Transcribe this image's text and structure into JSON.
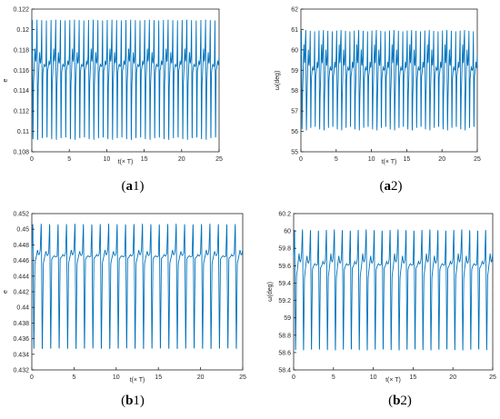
{
  "colors": {
    "line": "#0072BD",
    "axis": "#262626",
    "tick_text": "#262626"
  },
  "panels": [
    {
      "id": "a1",
      "caption_letter": "a",
      "caption_index": "1"
    },
    {
      "id": "a2",
      "caption_letter": "a",
      "caption_index": "2"
    },
    {
      "id": "b1",
      "caption_letter": "b",
      "caption_index": "1"
    },
    {
      "id": "b2",
      "caption_letter": "b",
      "caption_index": "2"
    }
  ],
  "chart_data": [
    {
      "type": "line",
      "panel": "a1",
      "xlabel": "t(× T)",
      "ylabel": "e",
      "xlim": [
        0,
        25
      ],
      "ylim": [
        0.108,
        0.122
      ],
      "x_ticks": [
        0,
        5,
        10,
        15,
        20,
        25
      ],
      "y_ticks": [
        "0.108",
        "0.11",
        "0.112",
        "0.114",
        "0.116",
        "0.118",
        "0.12",
        "0.122"
      ],
      "series": [
        {
          "period": 0.625,
          "peak_max": 0.1211,
          "peak_min": 0.1083,
          "band_high": 0.1183,
          "band_low": 0.1143,
          "band_cycles": 2.5
        }
      ]
    },
    {
      "type": "line",
      "panel": "a2",
      "xlabel": "t(× T)",
      "ylabel": "ω(deg)",
      "xlim": [
        0,
        25
      ],
      "ylim": [
        55,
        62
      ],
      "x_ticks": [
        0,
        5,
        10,
        15,
        20,
        25
      ],
      "y_ticks": [
        "55",
        "56",
        "57",
        "58",
        "59",
        "60",
        "61",
        "62"
      ],
      "series": [
        {
          "period": 0.625,
          "peak_max": 61.0,
          "peak_min": 55.8,
          "band_high": 60.4,
          "band_low": 57.5,
          "band_cycles": 2.5
        }
      ]
    },
    {
      "type": "line",
      "panel": "b1",
      "xlabel": "t(× T)",
      "ylabel": "e",
      "xlim": [
        0,
        25
      ],
      "ylim": [
        0.432,
        0.452
      ],
      "x_ticks": [
        0,
        5,
        10,
        15,
        20,
        25
      ],
      "y_ticks": [
        "0.432",
        "0.434",
        "0.436",
        "0.438",
        "0.44",
        "0.442",
        "0.444",
        "0.446",
        "0.448",
        "0.45",
        "0.452"
      ],
      "series": [
        {
          "period": 1.0,
          "peak_max": 0.4511,
          "peak_min": 0.4337,
          "band_high": 0.4474,
          "band_low": 0.4455,
          "band_cycles": 4
        }
      ]
    },
    {
      "type": "line",
      "panel": "b2",
      "xlabel": "t(× T)",
      "ylabel": "ω(deg)",
      "xlim": [
        0,
        25
      ],
      "ylim": [
        58.4,
        60.2
      ],
      "x_ticks": [
        0,
        5,
        10,
        15,
        20,
        25
      ],
      "y_ticks": [
        "58.4",
        "58.6",
        "58.8",
        "59",
        "59.2",
        "59.4",
        "59.6",
        "59.8",
        "60",
        "60.2"
      ],
      "series": [
        {
          "period": 1.0,
          "peak_max": 60.05,
          "peak_min": 58.55,
          "band_high": 59.75,
          "band_low": 59.45,
          "band_cycles": 4
        }
      ]
    }
  ]
}
